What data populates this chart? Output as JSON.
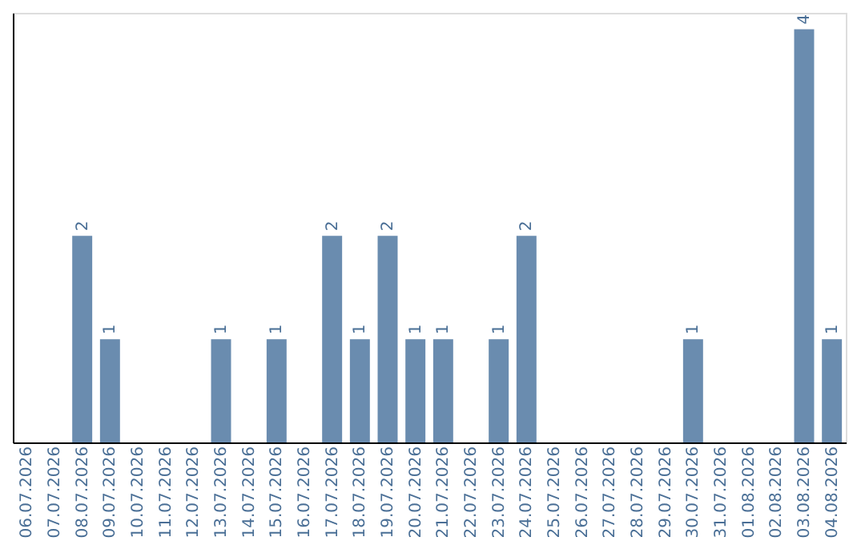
{
  "chart_data": {
    "type": "bar",
    "categories": [
      "06.07.2026",
      "07.07.2026",
      "08.07.2026",
      "09.07.2026",
      "10.07.2026",
      "11.07.2026",
      "12.07.2026",
      "13.07.2026",
      "14.07.2026",
      "15.07.2026",
      "16.07.2026",
      "17.07.2026",
      "18.07.2026",
      "19.07.2026",
      "20.07.2026",
      "21.07.2026",
      "22.07.2026",
      "23.07.2026",
      "24.07.2026",
      "25.07.2026",
      "26.07.2026",
      "27.07.2026",
      "28.07.2026",
      "29.07.2026",
      "30.07.2026",
      "31.07.2026",
      "01.08.2026",
      "02.08.2026",
      "03.08.2026",
      "04.08.2026"
    ],
    "values": [
      0,
      0,
      2,
      1,
      0,
      0,
      0,
      1,
      0,
      1,
      0,
      2,
      1,
      2,
      1,
      1,
      0,
      1,
      2,
      0,
      0,
      0,
      0,
      0,
      1,
      0,
      0,
      0,
      4,
      1
    ],
    "value_labels": [
      null,
      null,
      "2",
      "1",
      null,
      null,
      null,
      "1",
      null,
      "1",
      null,
      "2",
      "1",
      "2",
      "1",
      "1",
      null,
      "1",
      "2",
      null,
      null,
      null,
      null,
      null,
      "1",
      null,
      null,
      null,
      "4",
      "1"
    ],
    "color": "#6a8caf",
    "ylim": [
      0,
      4.16
    ],
    "tick_labels": "x",
    "grid": false
  }
}
